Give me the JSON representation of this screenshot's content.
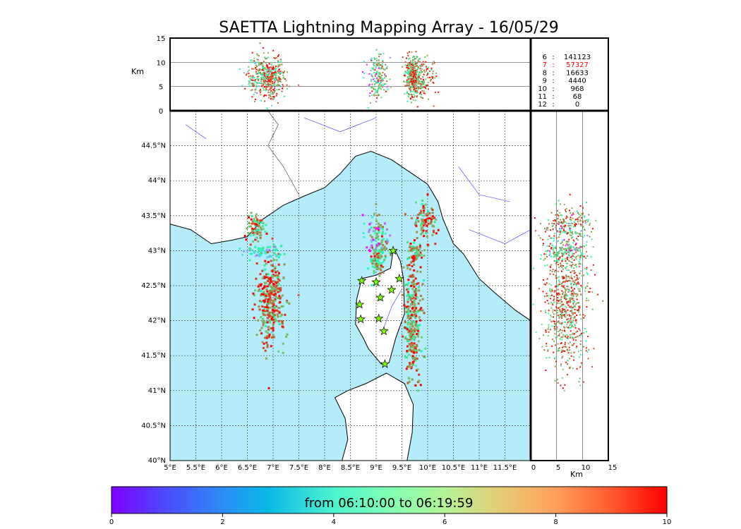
{
  "chart_data": {
    "type": "scatter",
    "title": "SAETTA Lightning Mapping Array - 16/05/29",
    "map": {
      "lon_range": [
        5,
        12
      ],
      "lat_range": [
        40,
        45
      ],
      "lon_ticks": [
        "5°E",
        "5.5°E",
        "6°E",
        "6.5°E",
        "7°E",
        "7.5°E",
        "8°E",
        "8.5°E",
        "9°E",
        "9.5°E",
        "10°E",
        "10.5°E",
        "11°E",
        "11.5°E"
      ],
      "lat_ticks": [
        "40°N",
        "40.5°N",
        "41°N",
        "41.5°N",
        "42°N",
        "42.5°N",
        "43°N",
        "43.5°N",
        "44°N",
        "44.5°N"
      ],
      "land_color": "#ffffff",
      "sea_color": "#b4ecfa"
    },
    "altitude_panel": {
      "ylabel": "Km",
      "ticks": [
        "0",
        "5",
        "10",
        "15"
      ],
      "range": [
        0,
        15
      ]
    },
    "side_panel": {
      "xlabel": "Km",
      "ticks": [
        "0",
        "5",
        "10",
        "15"
      ],
      "range": [
        0,
        15
      ]
    },
    "station_counts": [
      {
        "stations": "6",
        "count": "141123",
        "highlight": false
      },
      {
        "stations": "7",
        "count": "57327",
        "highlight": true
      },
      {
        "stations": "8",
        "count": "16633",
        "highlight": false
      },
      {
        "stations": "9",
        "count": "4440",
        "highlight": false
      },
      {
        "stations": "10",
        "count": "968",
        "highlight": false
      },
      {
        "stations": "11",
        "count": "68",
        "highlight": false
      },
      {
        "stations": "12",
        "count": "0",
        "highlight": false
      }
    ],
    "highlight_color": "#ff0000",
    "stations": [
      [
        8.72,
        42.57
      ],
      [
        9.0,
        42.55
      ],
      [
        9.45,
        42.6
      ],
      [
        9.3,
        42.44
      ],
      [
        9.08,
        42.33
      ],
      [
        8.68,
        42.23
      ],
      [
        8.7,
        42.02
      ],
      [
        9.05,
        42.03
      ],
      [
        9.15,
        41.85
      ],
      [
        9.17,
        41.38
      ],
      [
        9.33,
        43.0
      ]
    ],
    "clusters": [
      {
        "lon": 6.95,
        "lat": 42.25,
        "slon": 0.14,
        "slat": 0.3,
        "t": 8.8,
        "n": 320
      },
      {
        "lon": 6.65,
        "lat": 43.32,
        "slon": 0.08,
        "slat": 0.1,
        "t": 8.2,
        "n": 80
      },
      {
        "lon": 6.8,
        "lat": 42.98,
        "slon": 0.2,
        "slat": 0.05,
        "t": 4.5,
        "n": 60
      },
      {
        "lon": 9.05,
        "lat": 43.0,
        "slon": 0.08,
        "slat": 0.22,
        "t": 7.2,
        "n": 150
      },
      {
        "lon": 9.72,
        "lat": 42.05,
        "slon": 0.08,
        "slat": 0.45,
        "t": 8.0,
        "n": 300
      },
      {
        "lon": 9.95,
        "lat": 43.4,
        "slon": 0.12,
        "slat": 0.15,
        "t": 8.5,
        "n": 90
      },
      {
        "lon": 9.75,
        "lat": 42.95,
        "slon": 0.08,
        "slat": 0.08,
        "t": 8.3,
        "n": 50
      },
      {
        "lon": 8.9,
        "lat": 43.25,
        "slon": 0.15,
        "slat": 0.15,
        "t": 1.5,
        "n": 30
      }
    ],
    "colorbar": {
      "label": "from 06:10:00 to 06:19:59",
      "ticks": [
        "0",
        "2",
        "4",
        "6",
        "8",
        "10"
      ],
      "range": [
        0,
        10
      ]
    }
  }
}
